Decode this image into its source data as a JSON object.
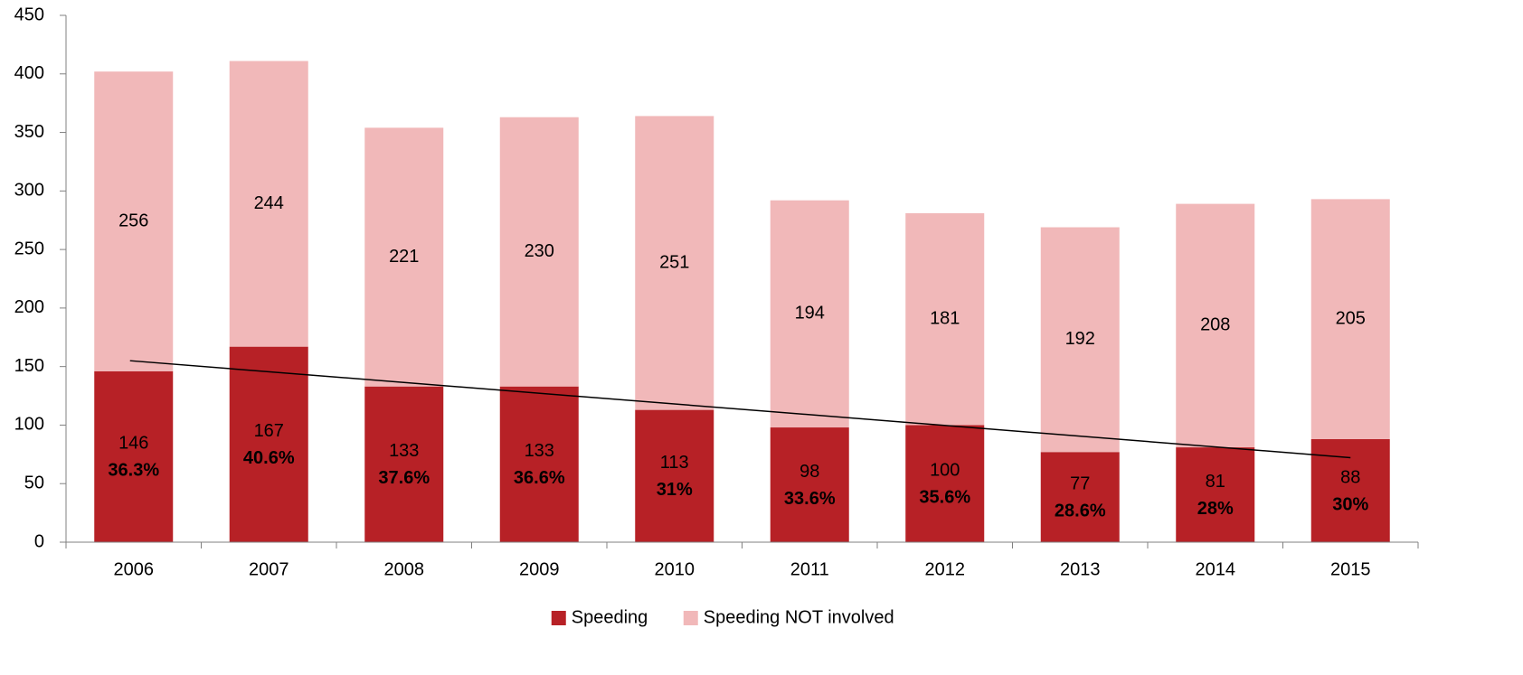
{
  "chart_data": {
    "type": "stacked_bar",
    "categories": [
      "2006",
      "2007",
      "2008",
      "2009",
      "2010",
      "2011",
      "2012",
      "2013",
      "2014",
      "2015"
    ],
    "series": [
      {
        "name": "Speeding",
        "color": "#b72126",
        "values": [
          146,
          167,
          133,
          133,
          113,
          98,
          100,
          77,
          81,
          88
        ]
      },
      {
        "name": "Speeding NOT involved",
        "color": "#f1b8b9",
        "values": [
          256,
          244,
          221,
          230,
          251,
          194,
          181,
          192,
          208,
          205
        ]
      }
    ],
    "percentages": {
      "values": [
        36.3,
        40.6,
        37.6,
        36.6,
        31,
        33.6,
        35.6,
        28.6,
        28,
        30
      ],
      "value_labels": [
        "36.3%",
        "40.6%",
        "37.6%",
        "36.6%",
        "31%",
        "33.6%",
        "35.6%",
        "28.6%",
        "28%",
        "30%"
      ]
    },
    "trendline": {
      "series": 0,
      "type": "linear",
      "color": "#000000"
    },
    "ylim": [
      0,
      450
    ],
    "yticks": [
      0,
      50,
      100,
      150,
      200,
      250,
      300,
      350,
      400,
      450
    ],
    "legend": "bottom"
  }
}
